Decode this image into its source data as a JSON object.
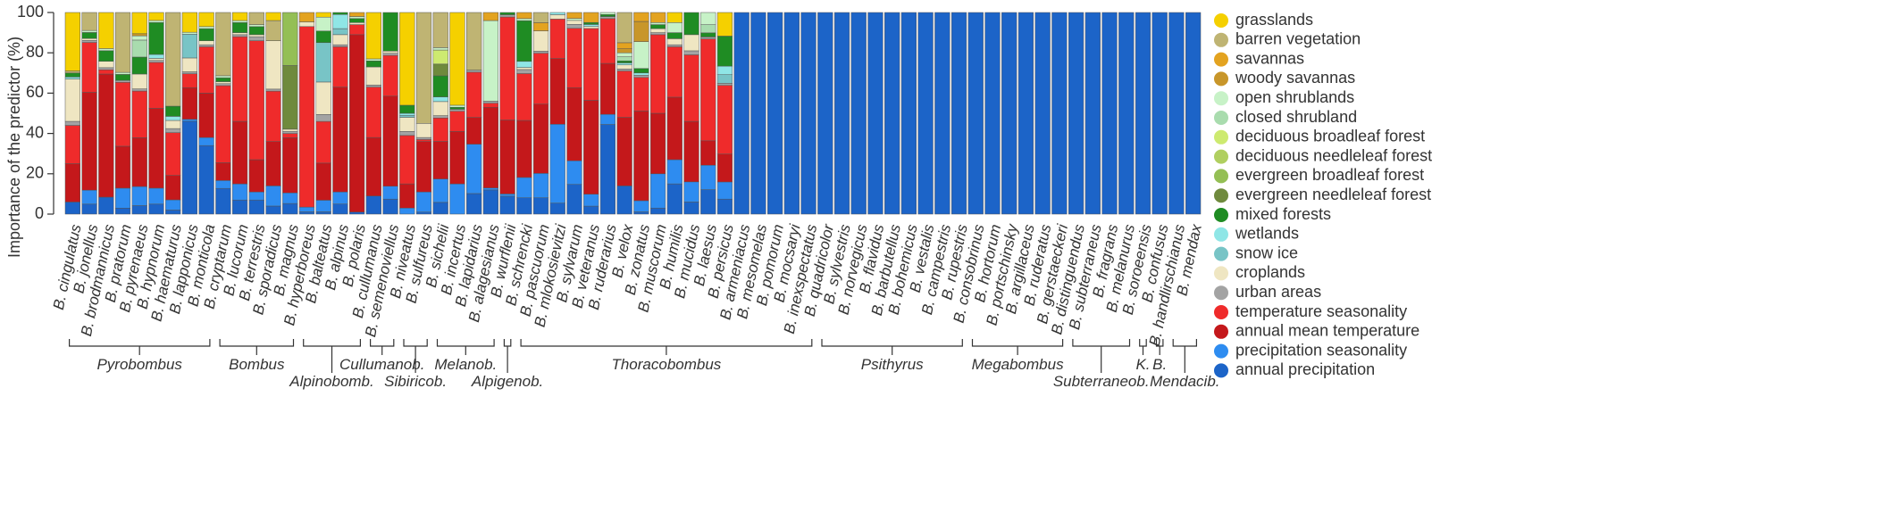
{
  "chart_data": {
    "type": "bar",
    "stacked": true,
    "ylabel": "Importance of the predictor (%)",
    "xlabel": "",
    "ylim": [
      0,
      100
    ],
    "yticks": [
      0,
      20,
      40,
      60,
      80,
      100
    ],
    "legend_position": "right",
    "series_names": [
      "grasslands",
      "barren vegetation",
      "savannas",
      "woody savannas",
      "open shrublands",
      "closed shrubland",
      "deciduous broadleaf forest",
      "deciduous needleleaf forest",
      "evergreen broadleaf forest",
      "evergreen needleleaf forest",
      "mixed forests",
      "wetlands",
      "snow ice",
      "croplands",
      "urban areas",
      "temperature seasonality",
      "annual mean temperature",
      "precipitation seasonality",
      "annual precipitation"
    ],
    "series_colors": [
      "#f5d000",
      "#bfb473",
      "#e3a320",
      "#c8962a",
      "#c7f2c7",
      "#a9dcae",
      "#cdea70",
      "#b0cf60",
      "#94bf55",
      "#6f8a3d",
      "#1f8c23",
      "#8fe6e6",
      "#78c4c6",
      "#efe6c2",
      "#a3a3a3",
      "#ef2b2b",
      "#c4181b",
      "#2e8cf0",
      "#1c64c8"
    ],
    "categories": [
      "B. cingulatus",
      "B. jonellus",
      "B. brodmannicus",
      "B. pratorum",
      "B. pyrenaeus",
      "B. hypnorum",
      "B. haematurus",
      "B. lapponicus",
      "B. monticola",
      "B. cryptarum",
      "B. lucorum",
      "B. terrestris",
      "B. sporadicus",
      "B. magnus",
      "B. hyperboreus",
      "B. balteatus",
      "B. alpinus",
      "B. polaris",
      "B. cullumanus",
      "B. semenoviellus",
      "B. niveatus",
      "B. sulfureus",
      "B. sichelii",
      "B. incertus",
      "B. lapidarius",
      "B. alagesianus",
      "B. wurflenii",
      "B. schrencki",
      "B. pascuorum",
      "B. mlokosievitzi",
      "B. sylvarum",
      "B. veteranus",
      "B. ruderarius",
      "B. velox",
      "B. zonatus",
      "B. muscorum",
      "B. humilis",
      "B. mucidus",
      "B. laesus",
      "B. persicus",
      "B. armeniacus",
      "B. mesomelas",
      "B. pomorum",
      "B. mocsaryi",
      "B. inexspectatus",
      "B. quadricolor",
      "B. sylvestris",
      "B. norvegicus",
      "B. flavidus",
      "B. barbutellus",
      "B. bohemicus",
      "B. vestalis",
      "B. campestris",
      "B. rupestris",
      "B. consobrinus",
      "B. hortorum",
      "B. portschinsky",
      "B. argillaceus",
      "B. ruderatus",
      "B. gerstaeckeri",
      "B. distinguendus",
      "B. subterraneus",
      "B. fragrans",
      "B. melanurus",
      "B. soroeensis",
      "B. confusus",
      "B. handlirschianus",
      "B. mendax"
    ],
    "stacks": [
      [
        29,
        1,
        0,
        0,
        0,
        0,
        0,
        0,
        0,
        0,
        2,
        1,
        0,
        21,
        2,
        19,
        19,
        0,
        6
      ],
      [
        0,
        9,
        0,
        0,
        1,
        0,
        0,
        0,
        0,
        0,
        3,
        0,
        0,
        1,
        1,
        25,
        49,
        7,
        5
      ],
      [
        17,
        0,
        0,
        0,
        1,
        0,
        0,
        0,
        0,
        0,
        5,
        0,
        0,
        3,
        1,
        2,
        58,
        0,
        8
      ],
      [
        0,
        30,
        0,
        0,
        1,
        0,
        0,
        0,
        0,
        0,
        3,
        0,
        0,
        0,
        1,
        32,
        21,
        10,
        3
      ],
      [
        10,
        0,
        0,
        1,
        2,
        8,
        0,
        0,
        0,
        0,
        8,
        0,
        0,
        7,
        1,
        22,
        23,
        9,
        4
      ],
      [
        4,
        0,
        0,
        0,
        1,
        0,
        0,
        0,
        0,
        0,
        16,
        2,
        0,
        1,
        1,
        23,
        40,
        8,
        5
      ],
      [
        0,
        46,
        0,
        0,
        0,
        0,
        0,
        0,
        0,
        0,
        5,
        2,
        0,
        4,
        2,
        21,
        12,
        5,
        2
      ],
      [
        10,
        0,
        0,
        0,
        1,
        0,
        0,
        0,
        0,
        0,
        0,
        0,
        12,
        7,
        1,
        7,
        16,
        1,
        47
      ],
      [
        7,
        0,
        0,
        0,
        1,
        0,
        0,
        0,
        0,
        0,
        6,
        0,
        0,
        2,
        1,
        23,
        22,
        4,
        34
      ],
      [
        0,
        32,
        0,
        0,
        1,
        0,
        0,
        0,
        0,
        0,
        2,
        0,
        0,
        1,
        1,
        39,
        9,
        4,
        13
      ],
      [
        4,
        0,
        0,
        0,
        1,
        0,
        0,
        0,
        0,
        0,
        5,
        0,
        0,
        1,
        1,
        42,
        31,
        8,
        7
      ],
      [
        0,
        6,
        0,
        0,
        1,
        0,
        0,
        0,
        0,
        0,
        4,
        0,
        0,
        1,
        2,
        59,
        16,
        4,
        7
      ],
      [
        4,
        10,
        0,
        0,
        0,
        0,
        0,
        0,
        0,
        0,
        0,
        0,
        0,
        24,
        1,
        25,
        22,
        10,
        4
      ],
      [
        0,
        0,
        0,
        0,
        0,
        0,
        0,
        0,
        25,
        30,
        0,
        0,
        0,
        1,
        1,
        2,
        26,
        5,
        5
      ],
      [
        0,
        0,
        4,
        0,
        0,
        0,
        0,
        0,
        0,
        0,
        0,
        0,
        0,
        2,
        0,
        77,
        0,
        2,
        1
      ],
      [
        2,
        0,
        0,
        0,
        6,
        0,
        0,
        0,
        0,
        0,
        5,
        0,
        17,
        14,
        3,
        18,
        16,
        5,
        1
      ],
      [
        0,
        0,
        0,
        0,
        0,
        0,
        0,
        0,
        0,
        0,
        1,
        7,
        3,
        5,
        1,
        20,
        52,
        6,
        5
      ],
      [
        0,
        0,
        2,
        0,
        1,
        0,
        0,
        0,
        0,
        0,
        2,
        0,
        0,
        1,
        0,
        5,
        88,
        0,
        1
      ],
      [
        23,
        0,
        0,
        0,
        1,
        0,
        0,
        0,
        0,
        0,
        3,
        0,
        0,
        9,
        1,
        25,
        29,
        0,
        9
      ],
      [
        0,
        0,
        0,
        0,
        0,
        0,
        0,
        0,
        0,
        0,
        18,
        0,
        0,
        1,
        1,
        19,
        42,
        6,
        7
      ],
      [
        46,
        0,
        0,
        0,
        0,
        0,
        0,
        0,
        0,
        0,
        4,
        1,
        1,
        7,
        2,
        24,
        12,
        3,
        0
      ],
      [
        0,
        55,
        0,
        0,
        0,
        0,
        0,
        0,
        0,
        0,
        0,
        0,
        0,
        7,
        1,
        1,
        25,
        10,
        1
      ],
      [
        0,
        15,
        0,
        0,
        1,
        0,
        6,
        0,
        0,
        5,
        9,
        2,
        0,
        6,
        1,
        10,
        16,
        10,
        5
      ],
      [
        46,
        0,
        0,
        0,
        1,
        0,
        0,
        0,
        0,
        0,
        1,
        0,
        0,
        0,
        1,
        10,
        26,
        15,
        0
      ],
      [
        0,
        28,
        0,
        0,
        0,
        0,
        0,
        0,
        0,
        0,
        0,
        0,
        0,
        0,
        1,
        22,
        13,
        24,
        10
      ],
      [
        0,
        0,
        4,
        0,
        40,
        0,
        0,
        0,
        0,
        0,
        0,
        0,
        0,
        0,
        1,
        2,
        40,
        1,
        12
      ],
      [
        0,
        0,
        0,
        0,
        0,
        0,
        0,
        0,
        0,
        0,
        1,
        0,
        0,
        0,
        1,
        46,
        33,
        1,
        8
      ],
      [
        0,
        0,
        3,
        0,
        1,
        0,
        0,
        0,
        0,
        0,
        20,
        3,
        0,
        1,
        2,
        23,
        28,
        10,
        8
      ],
      [
        0,
        5,
        4,
        0,
        0,
        0,
        0,
        0,
        0,
        0,
        0,
        0,
        0,
        10,
        1,
        25,
        34,
        12,
        8
      ],
      [
        0,
        0,
        0,
        0,
        0,
        0,
        0,
        0,
        0,
        0,
        0,
        1,
        0,
        2,
        0,
        18,
        30,
        36,
        5
      ],
      [
        0,
        0,
        3,
        0,
        1,
        0,
        0,
        0,
        0,
        0,
        0,
        0,
        0,
        2,
        2,
        30,
        37,
        12,
        15
      ],
      [
        0,
        0,
        5,
        0,
        0,
        0,
        0,
        0,
        0,
        0,
        1,
        1,
        0,
        1,
        0,
        36,
        47,
        6,
        4
      ],
      [
        0,
        0,
        0,
        0,
        1,
        0,
        0,
        0,
        0,
        0,
        1,
        0,
        0,
        0,
        1,
        22,
        25,
        5,
        44
      ],
      [
        0,
        15,
        3,
        2,
        2,
        2,
        0,
        0,
        0,
        0,
        1,
        1,
        0,
        2,
        1,
        23,
        34,
        0,
        14
      ],
      [
        0,
        0,
        4,
        9,
        12,
        0,
        0,
        0,
        0,
        0,
        2,
        1,
        0,
        0,
        1,
        15,
        40,
        5,
        1
      ],
      [
        0,
        0,
        5,
        0,
        1,
        0,
        0,
        0,
        0,
        0,
        2,
        0,
        0,
        2,
        1,
        39,
        30,
        17,
        3
      ],
      [
        5,
        0,
        0,
        0,
        5,
        0,
        0,
        0,
        0,
        0,
        3,
        0,
        0,
        3,
        1,
        25,
        31,
        12,
        15
      ],
      [
        0,
        0,
        0,
        0,
        0,
        0,
        0,
        0,
        0,
        0,
        11,
        0,
        0,
        8,
        2,
        33,
        30,
        10,
        6
      ],
      [
        0,
        0,
        0,
        0,
        6,
        4,
        0,
        0,
        0,
        0,
        2,
        0,
        0,
        0,
        1,
        50,
        12,
        12,
        12
      ],
      [
        11,
        0,
        0,
        0,
        0,
        0,
        0,
        0,
        0,
        0,
        14,
        4,
        4,
        0,
        1,
        32,
        13,
        8,
        7
      ],
      [
        0,
        0,
        0,
        0,
        0,
        0,
        0,
        0,
        0,
        0,
        0,
        0,
        0,
        0,
        0,
        0,
        0,
        0,
        100
      ],
      [
        0,
        0,
        0,
        0,
        0,
        0,
        0,
        0,
        0,
        0,
        0,
        0,
        0,
        0,
        0,
        0,
        0,
        0,
        100
      ],
      [
        0,
        0,
        0,
        0,
        0,
        0,
        0,
        0,
        0,
        0,
        0,
        0,
        0,
        0,
        0,
        0,
        0,
        0,
        100
      ],
      [
        0,
        0,
        0,
        0,
        0,
        0,
        0,
        0,
        0,
        0,
        0,
        0,
        0,
        0,
        0,
        0,
        0,
        0,
        100
      ],
      [
        0,
        0,
        0,
        0,
        0,
        0,
        0,
        0,
        0,
        0,
        0,
        0,
        0,
        0,
        0,
        0,
        0,
        0,
        100
      ],
      [
        0,
        0,
        0,
        0,
        0,
        0,
        0,
        0,
        0,
        0,
        0,
        0,
        0,
        0,
        0,
        0,
        0,
        0,
        100
      ],
      [
        0,
        0,
        0,
        0,
        0,
        0,
        0,
        0,
        0,
        0,
        0,
        0,
        0,
        0,
        0,
        0,
        0,
        0,
        100
      ],
      [
        0,
        0,
        0,
        0,
        0,
        0,
        0,
        0,
        0,
        0,
        0,
        0,
        0,
        0,
        0,
        0,
        0,
        0,
        100
      ],
      [
        0,
        0,
        0,
        0,
        0,
        0,
        0,
        0,
        0,
        0,
        0,
        0,
        0,
        0,
        0,
        0,
        0,
        0,
        100
      ],
      [
        0,
        0,
        0,
        0,
        0,
        0,
        0,
        0,
        0,
        0,
        0,
        0,
        0,
        0,
        0,
        0,
        0,
        0,
        100
      ],
      [
        0,
        0,
        0,
        0,
        0,
        0,
        0,
        0,
        0,
        0,
        0,
        0,
        0,
        0,
        0,
        0,
        0,
        0,
        100
      ],
      [
        0,
        0,
        0,
        0,
        0,
        0,
        0,
        0,
        0,
        0,
        0,
        0,
        0,
        0,
        0,
        0,
        0,
        0,
        100
      ],
      [
        0,
        0,
        0,
        0,
        0,
        0,
        0,
        0,
        0,
        0,
        0,
        0,
        0,
        0,
        0,
        0,
        0,
        0,
        100
      ],
      [
        0,
        0,
        0,
        0,
        0,
        0,
        0,
        0,
        0,
        0,
        0,
        0,
        0,
        0,
        0,
        0,
        0,
        0,
        100
      ],
      [
        0,
        0,
        0,
        0,
        0,
        0,
        0,
        0,
        0,
        0,
        0,
        0,
        0,
        0,
        0,
        0,
        0,
        0,
        100
      ],
      [
        0,
        0,
        0,
        0,
        0,
        0,
        0,
        0,
        0,
        0,
        0,
        0,
        0,
        0,
        0,
        0,
        0,
        0,
        100
      ],
      [
        0,
        0,
        0,
        0,
        0,
        0,
        0,
        0,
        0,
        0,
        0,
        0,
        0,
        0,
        0,
        0,
        0,
        0,
        100
      ],
      [
        0,
        0,
        0,
        0,
        0,
        0,
        0,
        0,
        0,
        0,
        0,
        0,
        0,
        0,
        0,
        0,
        0,
        0,
        100
      ],
      [
        0,
        0,
        0,
        0,
        0,
        0,
        0,
        0,
        0,
        0,
        0,
        0,
        0,
        0,
        0,
        0,
        0,
        0,
        100
      ],
      [
        0,
        0,
        0,
        0,
        0,
        0,
        0,
        0,
        0,
        0,
        0,
        0,
        0,
        0,
        0,
        0,
        0,
        0,
        100
      ],
      [
        0,
        0,
        0,
        0,
        0,
        0,
        0,
        0,
        0,
        0,
        0,
        0,
        0,
        0,
        0,
        0,
        0,
        0,
        100
      ],
      [
        0,
        0,
        0,
        0,
        0,
        0,
        0,
        0,
        0,
        0,
        0,
        0,
        0,
        0,
        0,
        0,
        0,
        0,
        100
      ],
      [
        0,
        0,
        0,
        0,
        0,
        0,
        0,
        0,
        0,
        0,
        0,
        0,
        0,
        0,
        0,
        0,
        0,
        0,
        100
      ],
      [
        0,
        0,
        0,
        0,
        0,
        0,
        0,
        0,
        0,
        0,
        0,
        0,
        0,
        0,
        0,
        0,
        0,
        0,
        100
      ],
      [
        0,
        0,
        0,
        0,
        0,
        0,
        0,
        0,
        0,
        0,
        0,
        0,
        0,
        0,
        0,
        0,
        0,
        0,
        100
      ],
      [
        0,
        0,
        0,
        0,
        0,
        0,
        0,
        0,
        0,
        0,
        0,
        0,
        0,
        0,
        0,
        0,
        0,
        0,
        100
      ],
      [
        0,
        0,
        0,
        0,
        0,
        0,
        0,
        0,
        0,
        0,
        0,
        0,
        0,
        0,
        0,
        0,
        0,
        0,
        100
      ],
      [
        0,
        0,
        0,
        0,
        0,
        0,
        0,
        0,
        0,
        0,
        0,
        0,
        0,
        0,
        0,
        0,
        0,
        0,
        100
      ]
    ],
    "groups": [
      {
        "label": "Pyrobombus",
        "from": 0,
        "to": 8,
        "row": "upper"
      },
      {
        "label": "Bombus",
        "from": 9,
        "to": 13,
        "row": "upper"
      },
      {
        "label": "Alpinobomb.",
        "from": 14,
        "to": 17,
        "row": "lower"
      },
      {
        "label": "Cullumanob.",
        "from": 18,
        "to": 19,
        "row": "upper"
      },
      {
        "label": "Sibiricob.",
        "from": 20,
        "to": 21,
        "row": "lower"
      },
      {
        "label": "Melanob.",
        "from": 22,
        "to": 25,
        "row": "upper"
      },
      {
        "label": "Alpigenob.",
        "from": 26,
        "to": 26,
        "row": "lower"
      },
      {
        "label": "Thoracobombus",
        "from": 27,
        "to": 44,
        "row": "upper"
      },
      {
        "label": "Psithyrus",
        "from": 45,
        "to": 53,
        "row": "upper"
      },
      {
        "label": "Megabombus",
        "from": 54,
        "to": 59,
        "row": "upper"
      },
      {
        "label": "Subterraneob.",
        "from": 60,
        "to": 63,
        "row": "lower"
      },
      {
        "label": "K.",
        "from": 64,
        "to": 64,
        "row": "upper"
      },
      {
        "label": "B.",
        "from": 65,
        "to": 65,
        "row": "upper"
      },
      {
        "label": "Mendacib.",
        "from": 66,
        "to": 67,
        "row": "lower"
      }
    ]
  }
}
